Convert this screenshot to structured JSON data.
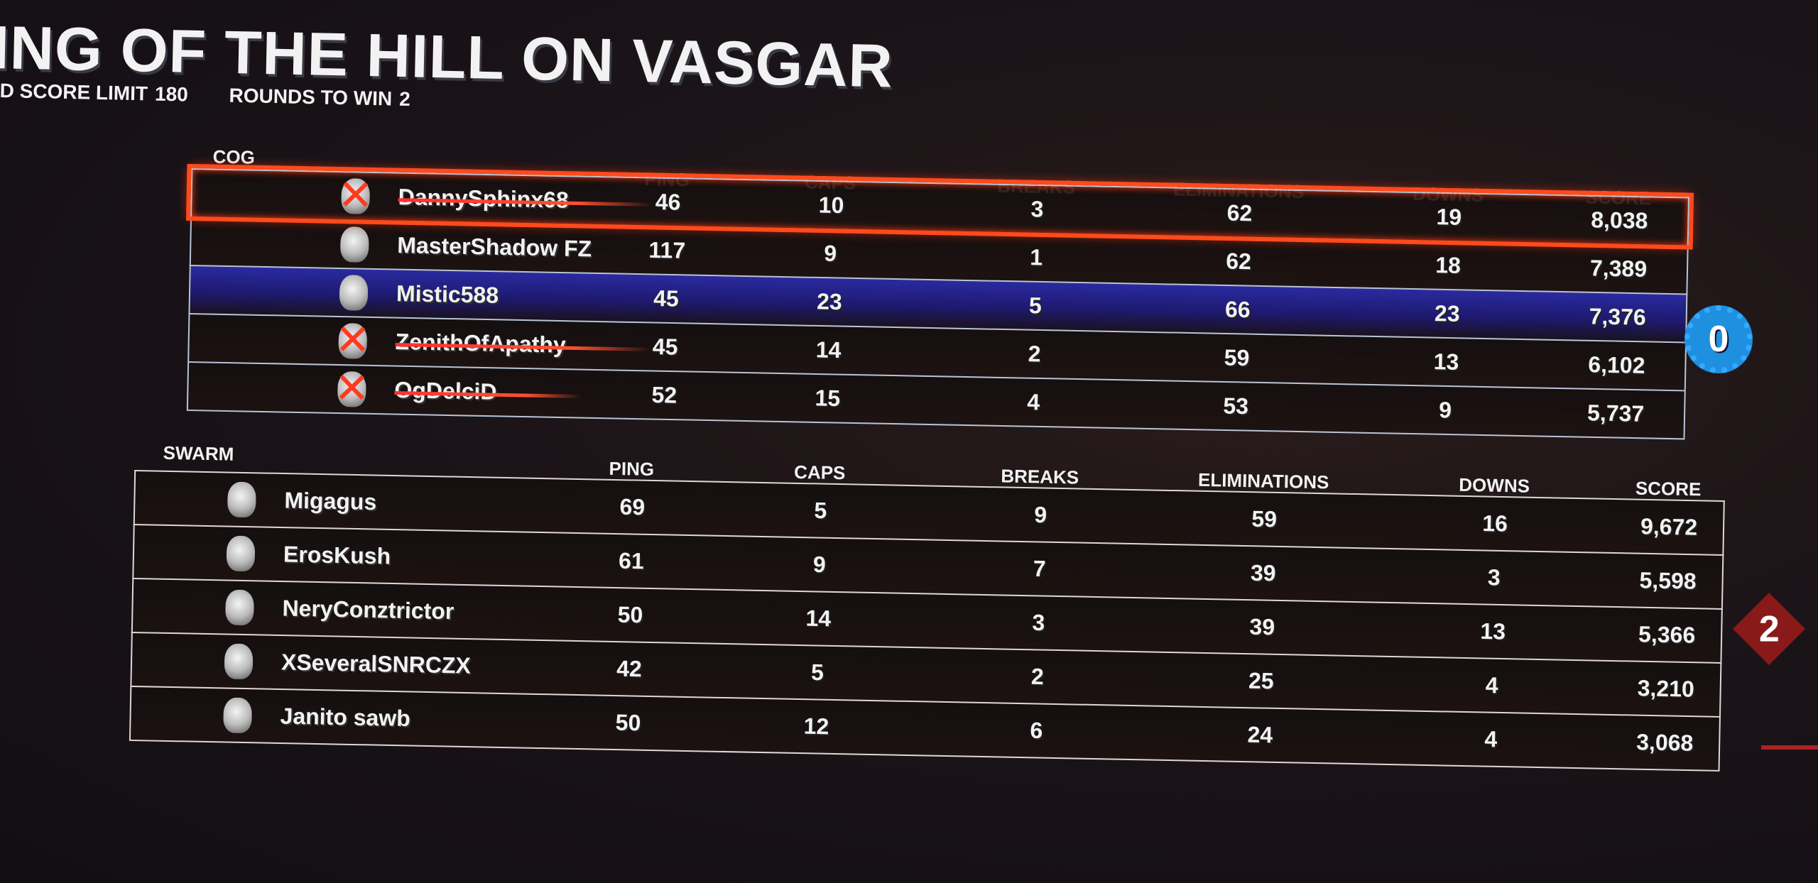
{
  "header": {
    "title": "ING OF THE HILL ON VASGAR",
    "score_limit_label": "D SCORE LIMIT",
    "score_limit_value": "180",
    "rounds_label": "ROUNDS TO WIN",
    "rounds_value": "2"
  },
  "columns": [
    "PING",
    "CAPS",
    "BREAKS",
    "ELIMINATIONS",
    "DOWNS",
    "SCORE"
  ],
  "colors": {
    "cog": "#1f8fe0",
    "swarm": "#8a1a1a",
    "highlight_self": "#2a2aa0",
    "highlight_top": "#ff4a1c"
  },
  "teams": [
    {
      "name": "COG",
      "rounds_won": "0",
      "emblem_icon": "cog-gear-icon",
      "players": [
        {
          "name": "DannySphinx68",
          "ping": "46",
          "caps": "10",
          "breaks": "3",
          "eliminations": "62",
          "downs": "19",
          "score": "8,038",
          "eliminated": true,
          "top": true
        },
        {
          "name": "MasterShadow FZ",
          "ping": "117",
          "caps": "9",
          "breaks": "1",
          "eliminations": "62",
          "downs": "18",
          "score": "7,389"
        },
        {
          "name": "Mistic588",
          "ping": "45",
          "caps": "23",
          "breaks": "5",
          "eliminations": "66",
          "downs": "23",
          "score": "7,376",
          "self": true
        },
        {
          "name": "ZenithOfApathy",
          "ping": "45",
          "caps": "14",
          "breaks": "2",
          "eliminations": "59",
          "downs": "13",
          "score": "6,102",
          "eliminated": true
        },
        {
          "name": "OgDelciD",
          "ping": "52",
          "caps": "15",
          "breaks": "4",
          "eliminations": "53",
          "downs": "9",
          "score": "5,737",
          "eliminated": true
        }
      ]
    },
    {
      "name": "SWARM",
      "rounds_won": "2",
      "emblem_icon": "swarm-diamond-icon",
      "players": [
        {
          "name": "Migagus",
          "ping": "69",
          "caps": "5",
          "breaks": "9",
          "eliminations": "59",
          "downs": "16",
          "score": "9,672"
        },
        {
          "name": "ErosKush",
          "ping": "61",
          "caps": "9",
          "breaks": "7",
          "eliminations": "39",
          "downs": "3",
          "score": "5,598"
        },
        {
          "name": "NeryConztrictor",
          "ping": "50",
          "caps": "14",
          "breaks": "3",
          "eliminations": "39",
          "downs": "13",
          "score": "5,366"
        },
        {
          "name": "XSeveralSNRCZX",
          "ping": "42",
          "caps": "5",
          "breaks": "2",
          "eliminations": "25",
          "downs": "4",
          "score": "3,210"
        },
        {
          "name": "Janito sawb",
          "ping": "50",
          "caps": "12",
          "breaks": "6",
          "eliminations": "24",
          "downs": "4",
          "score": "3,068"
        }
      ]
    }
  ]
}
